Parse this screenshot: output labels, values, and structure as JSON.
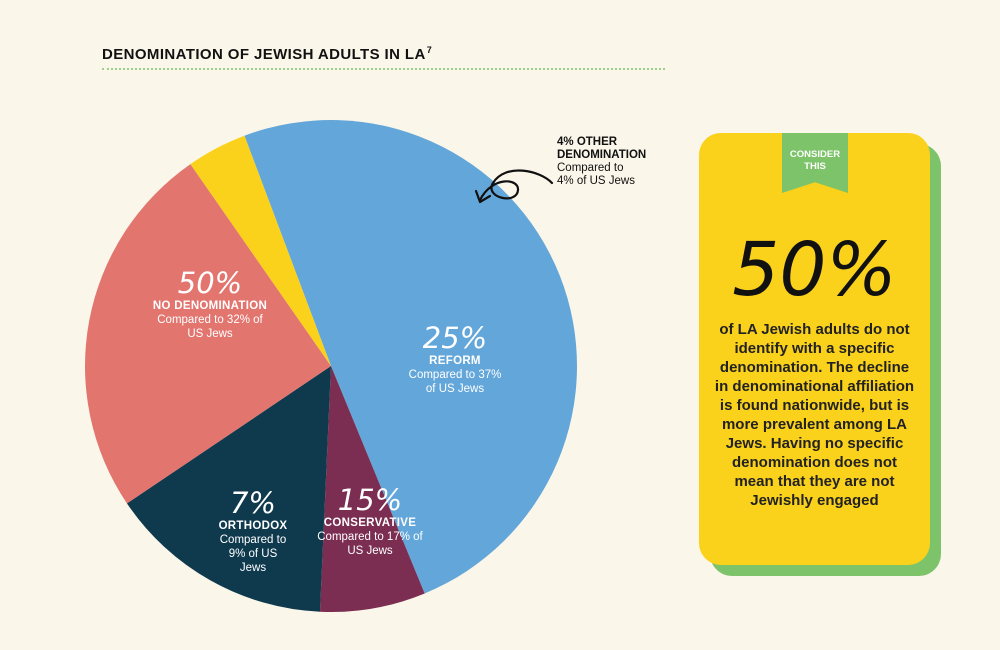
{
  "title": "DENOMINATION OF JEWISH ADULTS IN LA",
  "title_footnote": "7",
  "chart_data": {
    "type": "pie",
    "title": "DENOMINATION OF JEWISH ADULTS IN LA",
    "slices": [
      {
        "key": "no_denomination",
        "label": "NO DENOMINATION",
        "pct_label": "50%",
        "value": 50,
        "comparison": "Compared to 32% of US Jews",
        "color": "#63a6d9"
      },
      {
        "key": "orthodox",
        "label": "ORTHODOX",
        "pct_label": "7%",
        "value": 7,
        "comparison": "Compared to 9% of US Jews",
        "color": "#7b2d52"
      },
      {
        "key": "conservative",
        "label": "CONSERVATIVE",
        "pct_label": "15%",
        "value": 15,
        "comparison": "Compared to 17% of US Jews",
        "color": "#0f3a4e"
      },
      {
        "key": "reform",
        "label": "REFORM",
        "pct_label": "25%",
        "value": 25,
        "comparison": "Compared to 37% of US Jews",
        "color": "#e3756f"
      },
      {
        "key": "other",
        "label": "4% OTHER DENOMINATION",
        "value": 4,
        "comparison": "Compared to 4% of US Jews",
        "color": "#fad11b"
      }
    ]
  },
  "labels": {
    "no_denomination": {
      "pct": "50%",
      "name": "NO DENOMINATION",
      "cmp1": "Compared to 32% of",
      "cmp2": "US Jews"
    },
    "reform": {
      "pct": "25%",
      "name": "REFORM",
      "cmp1": "Compared to 37%",
      "cmp2": "of US Jews"
    },
    "conservative": {
      "pct": "15%",
      "name": "CONSERVATIVE",
      "cmp1": "Compared to 17% of",
      "cmp2": "US Jews"
    },
    "orthodox": {
      "pct": "7%",
      "name": "ORTHODOX",
      "cmp1": "Compared to",
      "cmp2": "9% of US",
      "cmp3": "Jews"
    },
    "other": {
      "name1": "4% OTHER",
      "name2": "DENOMINATION",
      "cmp1": "Compared to",
      "cmp2": "4% of US Jews"
    }
  },
  "callout": {
    "ribbon_line1": "CONSIDER",
    "ribbon_line2": "THIS",
    "big_number": "50%",
    "text": "of LA Jewish adults do not identify with a specific denomination. The decline in denominational affiliation is found nationwide, but is more prevalent among LA Jews. Having no specific denomination does not mean that they are not Jewishly engaged"
  },
  "colors": {
    "background": "#fbf6ea",
    "callout_yellow": "#fad11b",
    "callout_green": "#7cc36a"
  }
}
